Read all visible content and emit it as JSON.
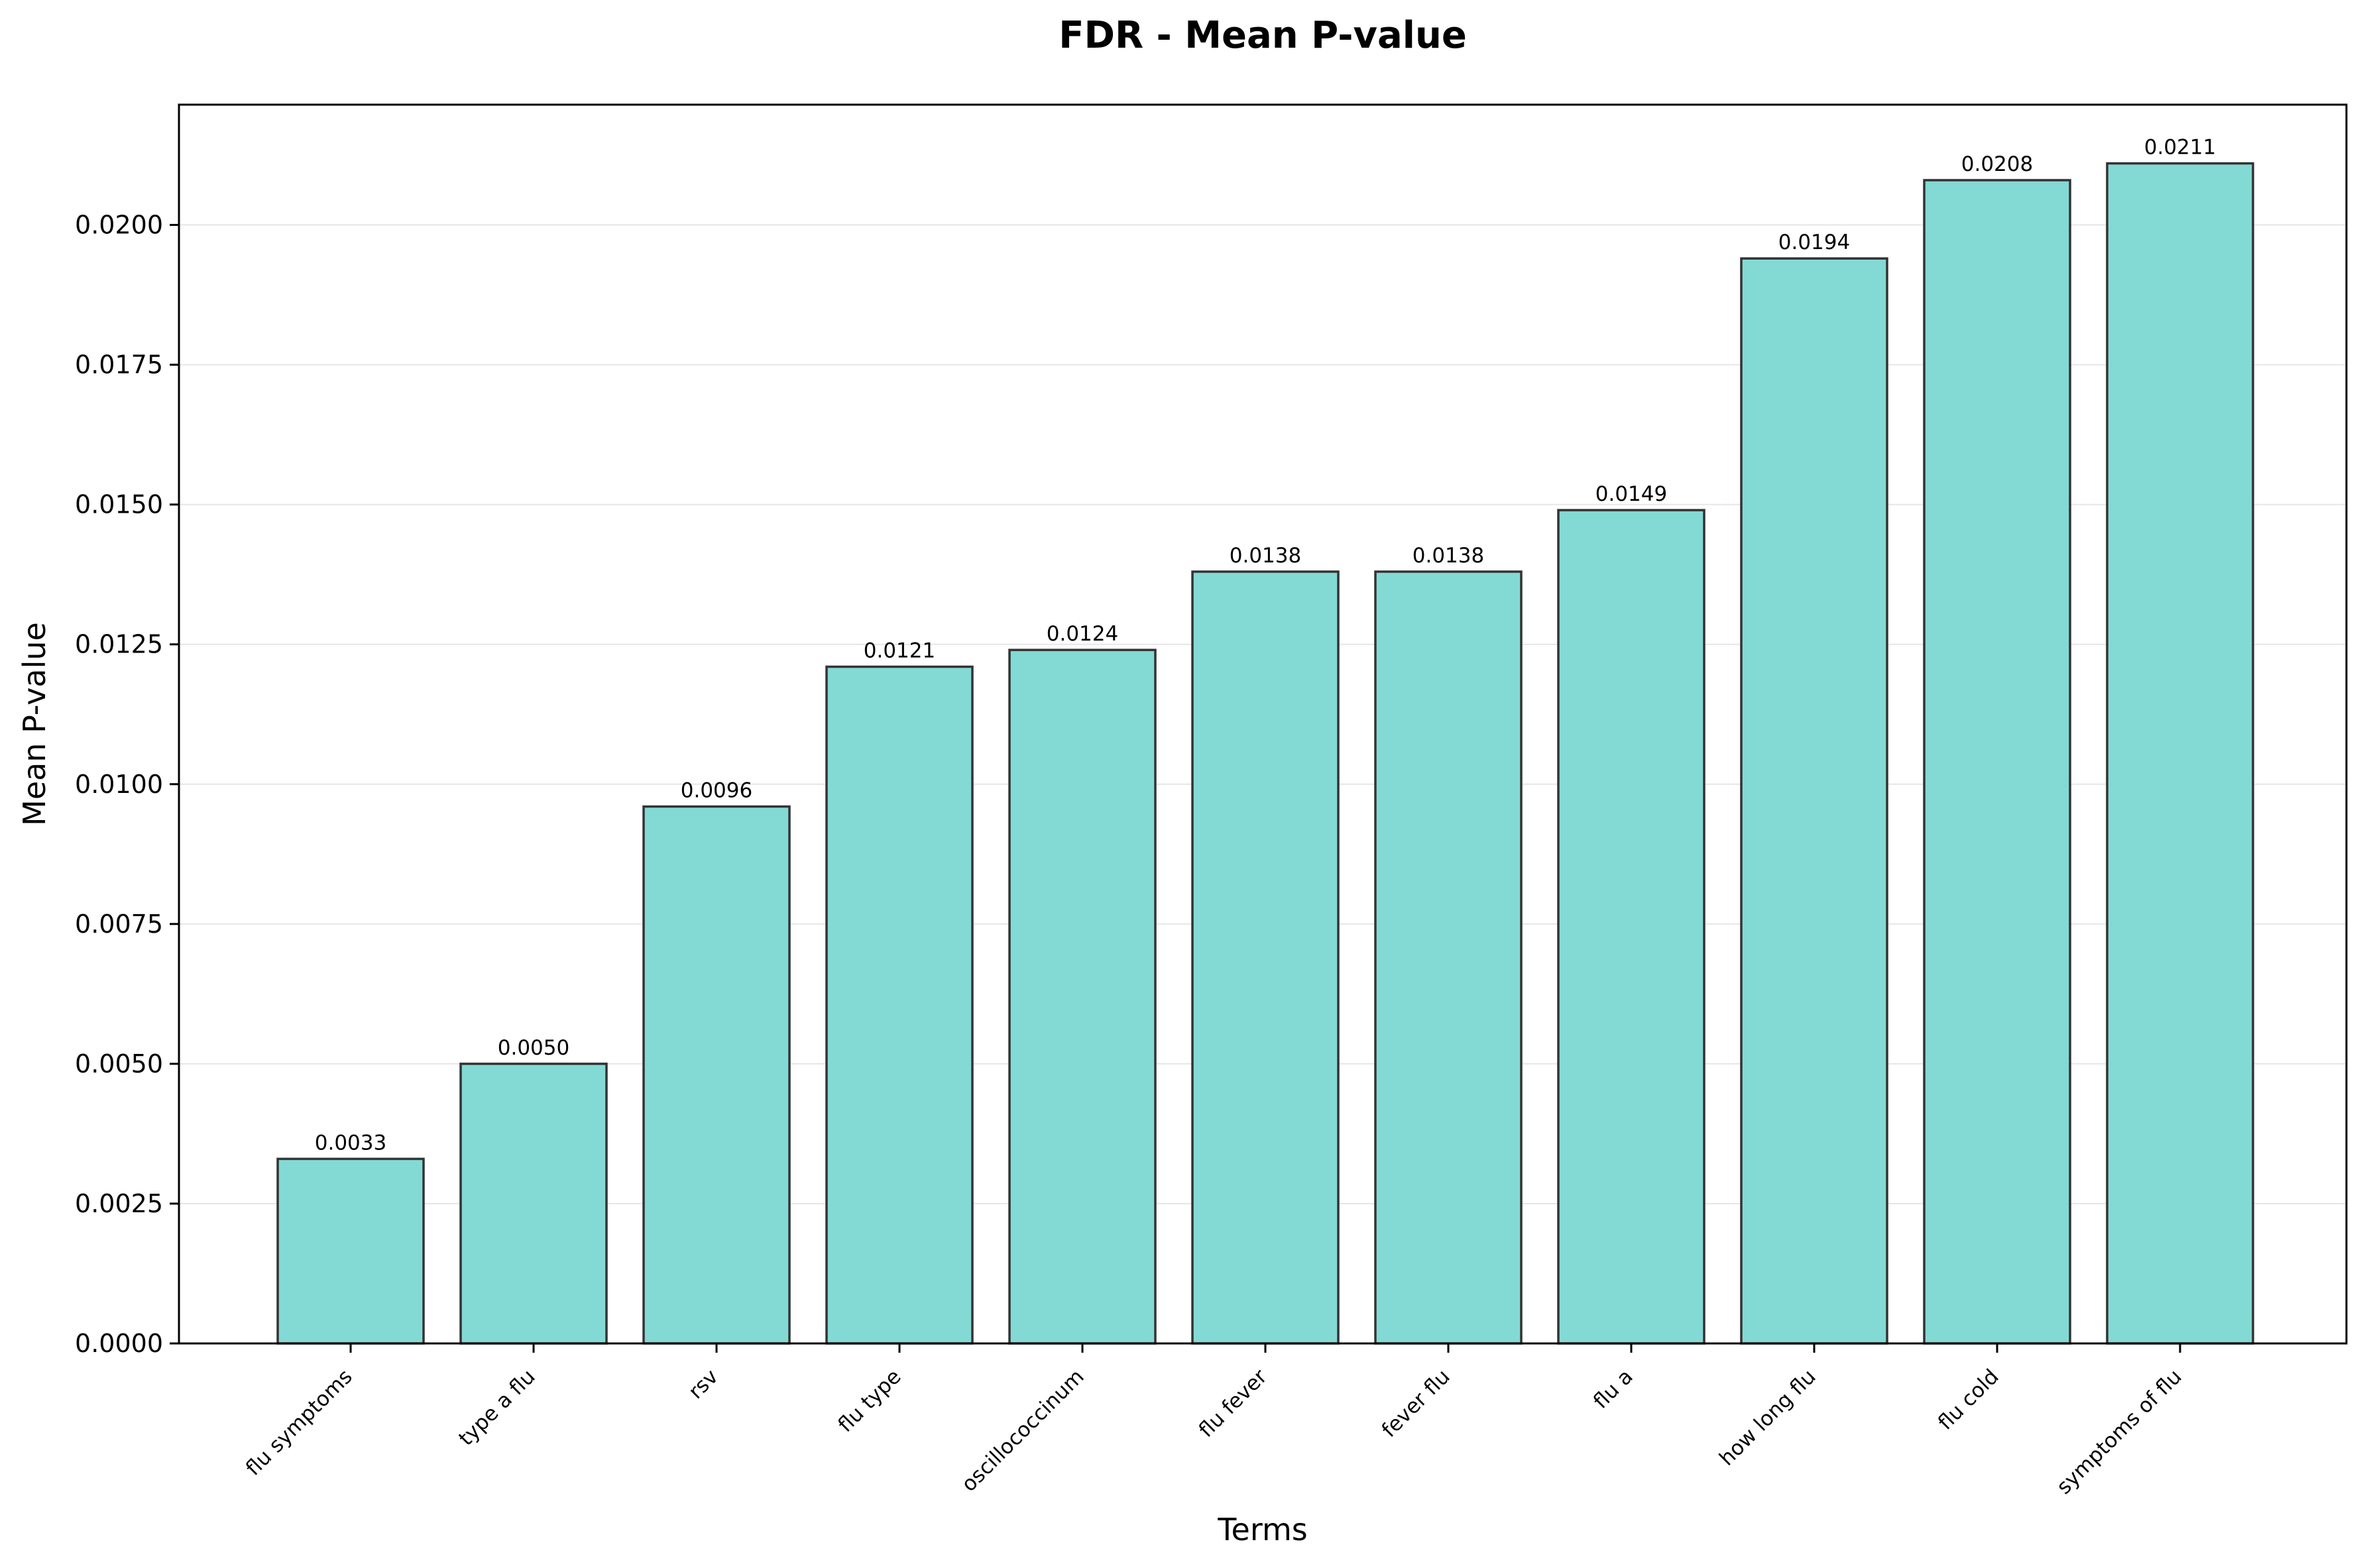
{
  "chart_data": {
    "type": "bar",
    "title": "FDR - Mean P-value",
    "xlabel": "Terms",
    "ylabel": "Mean P-value",
    "categories": [
      "flu symptoms",
      "type a flu",
      "rsv",
      "flu type",
      "oscillococcinum",
      "flu fever",
      "fever flu",
      "flu a",
      "how long flu",
      "flu cold",
      "symptoms of flu"
    ],
    "values": [
      0.0033,
      0.005,
      0.0096,
      0.0121,
      0.0124,
      0.0138,
      0.0138,
      0.0149,
      0.0194,
      0.0208,
      0.0211
    ],
    "data_labels": [
      "0.0033",
      "0.0050",
      "0.0096",
      "0.0121",
      "0.0124",
      "0.0138",
      "0.0138",
      "0.0149",
      "0.0194",
      "0.0208",
      "0.0211"
    ],
    "yticks": [
      0.0,
      0.0025,
      0.005,
      0.0075,
      0.01,
      0.0125,
      0.015,
      0.0175,
      0.02
    ],
    "ytick_labels": [
      "0.0000",
      "0.0025",
      "0.0050",
      "0.0075",
      "0.0100",
      "0.0125",
      "0.0150",
      "0.0175",
      "0.0200"
    ],
    "ylim": [
      0,
      0.02215
    ],
    "grid": "y",
    "legend": "none",
    "colors": {
      "bar_fill": "#83dad4",
      "bar_edge": "#333333",
      "grid": "#e6e6e6",
      "axis": "#000000"
    }
  }
}
